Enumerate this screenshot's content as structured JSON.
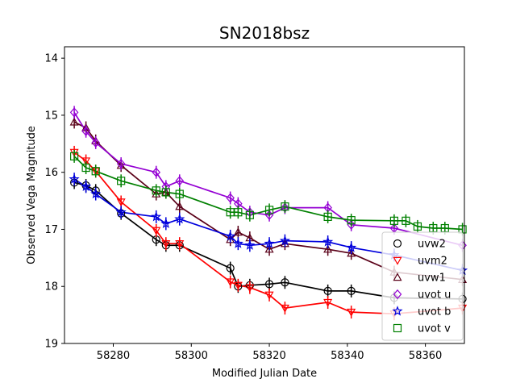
{
  "chart_data": {
    "type": "scatter",
    "title": "SN2018bsz",
    "xlabel": "Modified Julian Date",
    "ylabel": "Observed Vega Magnitude",
    "xlim": [
      58267.5,
      58370
    ],
    "ylim": [
      13.8,
      19.0
    ],
    "y_inverted": true,
    "grid": false,
    "legend_position": "lower-right",
    "xticks": [
      58280,
      58300,
      58320,
      58340,
      58360
    ],
    "yticks": [
      14,
      15,
      16,
      17,
      18,
      19
    ],
    "series": [
      {
        "name": "uvw2",
        "color": "#000000",
        "marker": "circle",
        "x": [
          58270,
          58273,
          58275.5,
          58282,
          58291,
          58293.5,
          58297,
          58310,
          58312,
          58315,
          58320,
          58324,
          58335,
          58341,
          58352,
          58369.5
        ],
        "y": [
          16.18,
          16.23,
          16.32,
          16.72,
          17.18,
          17.28,
          17.28,
          17.68,
          18.0,
          17.98,
          17.96,
          17.93,
          18.08,
          18.08,
          18.2,
          18.22
        ]
      },
      {
        "name": "uvm2",
        "color": "#ff0000",
        "marker": "triangle-down",
        "x": [
          58270,
          58273,
          58275.5,
          58282,
          58291,
          58293.5,
          58297,
          58310,
          58312,
          58315,
          58320,
          58324,
          58335,
          58341,
          58352,
          58369.5
        ],
        "y": [
          15.65,
          15.8,
          15.98,
          16.52,
          17.02,
          17.25,
          17.25,
          17.92,
          17.98,
          18.02,
          18.15,
          18.38,
          18.28,
          18.45,
          18.48,
          18.38
        ]
      },
      {
        "name": "uvw1",
        "color": "#5a0018",
        "marker": "triangle-up",
        "x": [
          58270,
          58273,
          58275.5,
          58282,
          58291,
          58293.5,
          58297,
          58310,
          58312,
          58315,
          58320,
          58324,
          58335,
          58341,
          58352,
          58369.5
        ],
        "y": [
          15.12,
          15.22,
          15.45,
          15.88,
          16.38,
          16.35,
          16.6,
          17.18,
          17.05,
          17.15,
          17.35,
          17.25,
          17.35,
          17.42,
          17.75,
          17.88
        ]
      },
      {
        "name": "uvot u",
        "color": "#9400d3",
        "marker": "diamond",
        "x": [
          58270,
          58273,
          58275.5,
          58282,
          58291,
          58293.5,
          58297,
          58310,
          58312,
          58315,
          58320,
          58324,
          58335,
          58341,
          58352,
          58369.5
        ],
        "y": [
          14.95,
          15.28,
          15.48,
          15.85,
          16.0,
          16.25,
          16.15,
          16.45,
          16.55,
          16.7,
          16.75,
          16.62,
          16.62,
          16.92,
          16.98,
          17.28
        ]
      },
      {
        "name": "uvot b",
        "color": "#0000dd",
        "marker": "star",
        "x": [
          58270,
          58273,
          58275.5,
          58282,
          58291,
          58293.5,
          58297,
          58310,
          58312,
          58315,
          58320,
          58324,
          58335,
          58341,
          58352,
          58369.5
        ],
        "y": [
          16.12,
          16.25,
          16.38,
          16.7,
          16.78,
          16.9,
          16.82,
          17.12,
          17.25,
          17.28,
          17.25,
          17.2,
          17.22,
          17.32,
          17.45,
          17.72
        ]
      },
      {
        "name": "uvot v",
        "color": "#008000",
        "marker": "square",
        "x": [
          58270,
          58273,
          58275.5,
          58282,
          58291,
          58293.5,
          58297,
          58310,
          58312,
          58315,
          58320,
          58324,
          58335,
          58341,
          58352,
          58355,
          58358,
          58362,
          58365,
          58369.5
        ],
        "y": [
          15.72,
          15.92,
          15.98,
          16.15,
          16.32,
          16.35,
          16.38,
          16.7,
          16.7,
          16.75,
          16.66,
          16.6,
          16.78,
          16.84,
          16.85,
          16.85,
          16.95,
          16.98,
          16.98,
          17.0
        ]
      }
    ]
  }
}
